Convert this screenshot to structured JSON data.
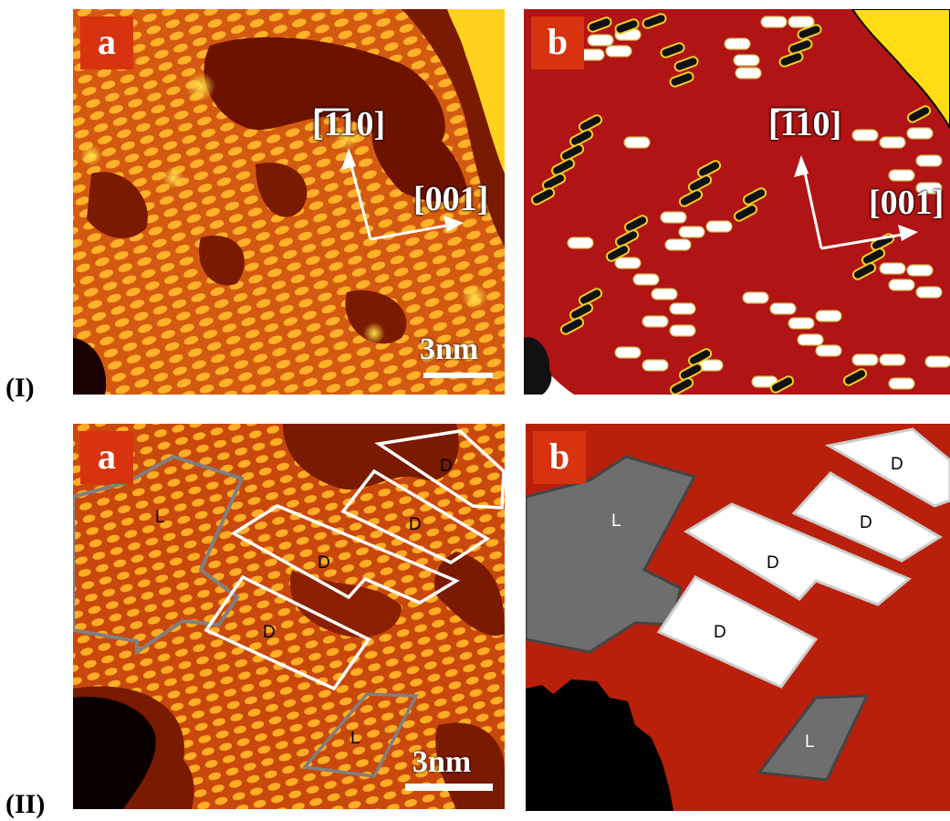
{
  "rows": {
    "top": "(I)",
    "bottom": "(II)"
  },
  "panels": {
    "p1a": {
      "tag": "a",
      "dir_y": "[̅1̅10]",
      "dir_x": "[001]",
      "scale": "3nm"
    },
    "p1b": {
      "tag": "b",
      "dir_y": "[̅1̅10]",
      "dir_x": "[001]"
    },
    "p2a": {
      "tag": "a",
      "scale": "3nm",
      "regions": [
        "L",
        "D",
        "D",
        "D",
        "D",
        "L"
      ]
    },
    "p2b": {
      "tag": "b",
      "regions": [
        "L",
        "D",
        "D",
        "D",
        "D",
        "L"
      ]
    }
  },
  "colors": {
    "tag_bg": "#d8330f",
    "map_red": "#b01414",
    "dark_red": "#7a1a00",
    "domain_gray": "#6e6e6e"
  }
}
